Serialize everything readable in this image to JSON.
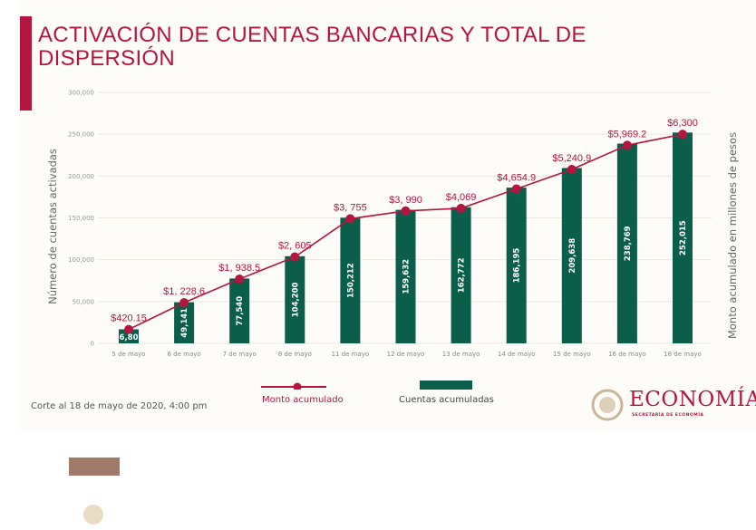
{
  "title": "ACTIVACIÓN DE CUENTAS BANCARIAS Y TOTAL DE DISPERSIÓN",
  "note": "Corte al 18 de mayo de 2020, 4:00 pm",
  "logo": {
    "name": "ECONOMÍA",
    "sub": "SECRETARÍA DE ECONOMÍA"
  },
  "colors": {
    "accent": "#b5163f",
    "bar": "#0b5e4a",
    "line": "#b5163f"
  },
  "chart_data": {
    "type": "bar+line",
    "categories": [
      "5 de mayo",
      "6 de mayo",
      "7 de mayo",
      "8 de mayo",
      "11 de mayo",
      "12 de mayo",
      "13 de mayo",
      "14 de mayo",
      "15 de mayo",
      "16 de mayo",
      "18 de mayo"
    ],
    "series": [
      {
        "name": "Cuentas acumuladas",
        "type": "bar",
        "axis": "left",
        "values": [
          16806,
          49141,
          77540,
          104200,
          150212,
          159632,
          162772,
          186195,
          209638,
          238769,
          252015
        ],
        "labels": [
          "16,806",
          "49,141",
          "77,540",
          "104,200",
          "150,212",
          "159,632",
          "162,772",
          "186,195",
          "209,638",
          "238,769",
          "252,015"
        ]
      },
      {
        "name": "Monto acumulado",
        "type": "line",
        "axis": "right",
        "values": [
          420.15,
          1228.6,
          1938.5,
          2605,
          3755,
          3990,
          4069,
          4654.9,
          5240.9,
          5969.2,
          6300
        ],
        "labels": [
          "$420.15",
          "$1, 228.6",
          "$1, 938.5",
          "$2, 605",
          "$3, 755",
          "$3, 990",
          "$4,069",
          "$4,654.9",
          "$5,240.9",
          "$5,969.2",
          "$6,300"
        ]
      }
    ],
    "ylabel": "Número de cuentas activadas",
    "y2label": "Monto acumulado en millones de pesos",
    "ylim": [
      0,
      300000
    ],
    "yticks": [
      "0",
      "50,000",
      "100,000",
      "150,000",
      "200,000",
      "250,000",
      "300,000"
    ],
    "y2lim": [
      0,
      7560
    ],
    "grid": true,
    "legend": "bottom"
  }
}
